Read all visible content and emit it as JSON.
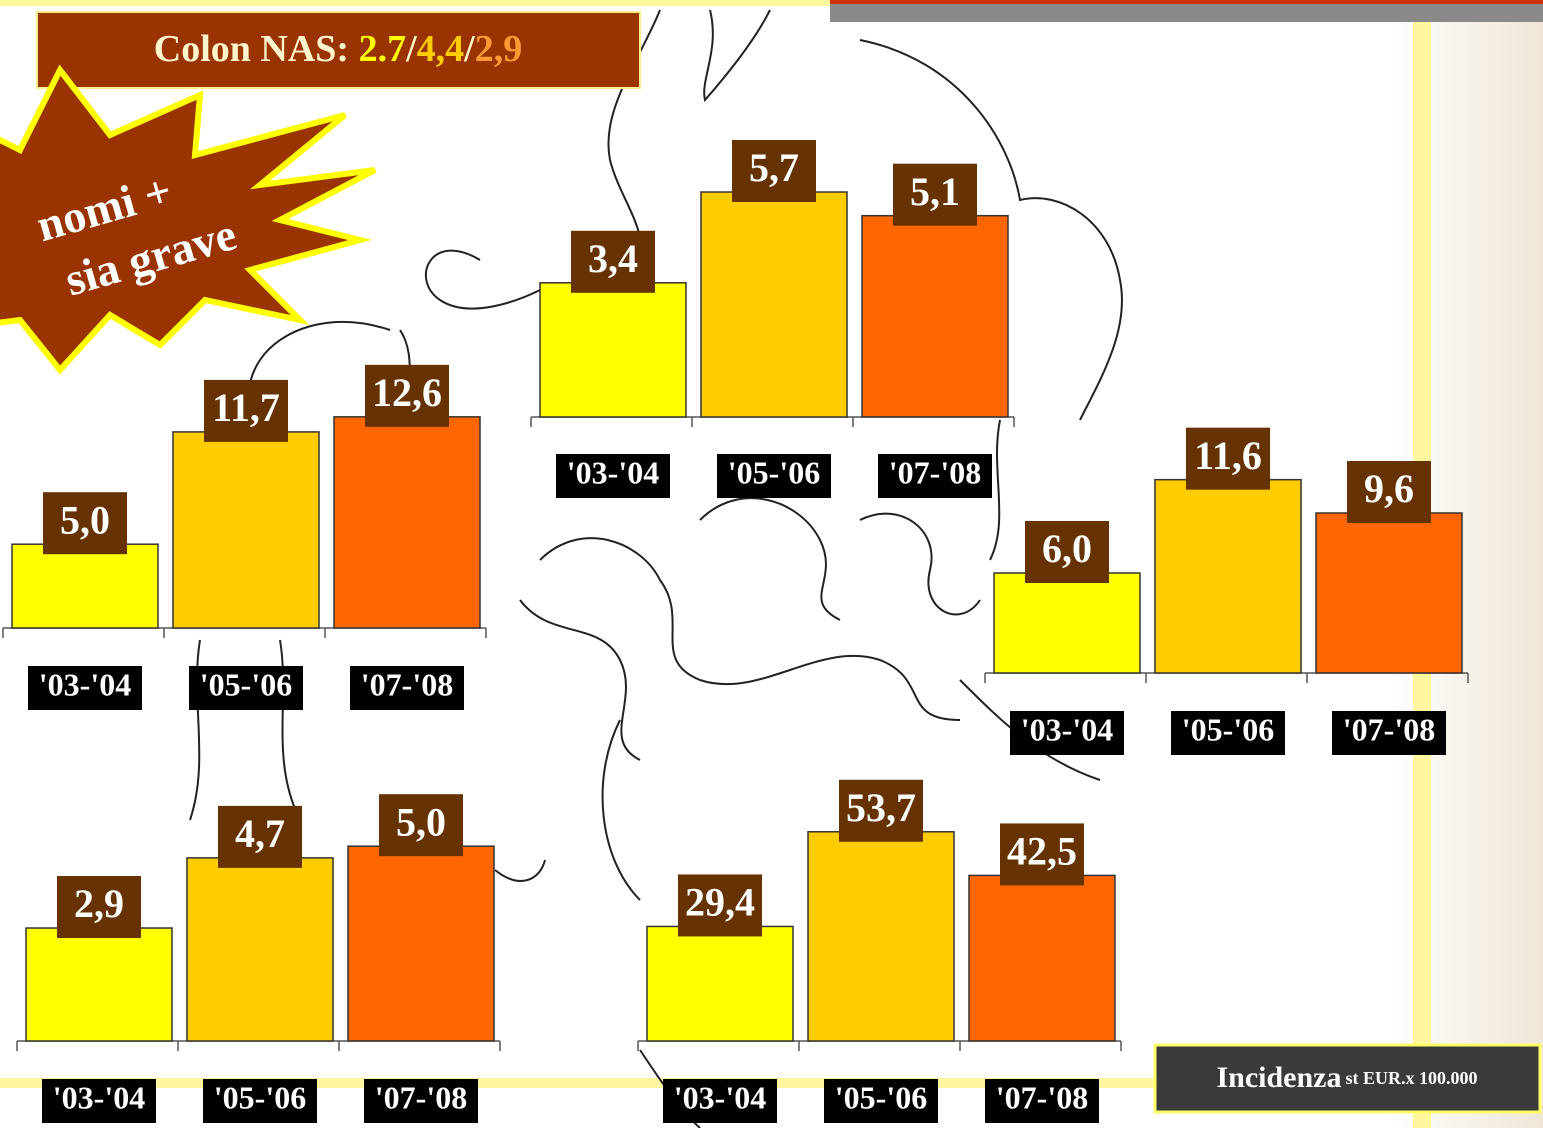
{
  "header": {
    "label": "Colon NAS:",
    "separator": "/",
    "parts": [
      "2.7",
      "4,4",
      "2,9"
    ],
    "colors": [
      "#ffff00",
      "#ffcc00",
      "#ff9933"
    ]
  },
  "burst": {
    "lines": [
      "nomi +",
      "sia grave"
    ]
  },
  "footer": {
    "label": "Incidenza",
    "unit": "st EUR.x 100.000"
  },
  "chart_data": [
    {
      "type": "bar",
      "categories": [
        "'03-'04",
        "'05-'06",
        "'07-'08"
      ],
      "values": [
        5.0,
        11.7,
        12.6
      ],
      "value_labels": [
        "5,0",
        "11,7",
        "12,6"
      ],
      "colors": [
        "#ffff00",
        "#ffcc00",
        "#ff6600"
      ],
      "ylim": [
        0,
        17.9
      ]
    },
    {
      "type": "bar",
      "categories": [
        "'03-'04",
        "'05-'06",
        "'07-'08"
      ],
      "values": [
        3.4,
        5.7,
        5.1
      ],
      "value_labels": [
        "3,4",
        "5,7",
        "5,1"
      ],
      "colors": [
        "#ffff00",
        "#ffcc00",
        "#ff6600"
      ],
      "ylim": [
        0,
        7.6
      ]
    },
    {
      "type": "bar",
      "categories": [
        "'03-'04",
        "'05-'06",
        "'07-'08"
      ],
      "values": [
        6.0,
        11.6,
        9.6
      ],
      "value_labels": [
        "6,0",
        "11,6",
        "9,6"
      ],
      "colors": [
        "#ffff00",
        "#ffcc00",
        "#ff6600"
      ],
      "ylim": [
        0,
        18
      ]
    },
    {
      "type": "bar",
      "categories": [
        "'03-'04",
        "'05-'06",
        "'07-'08"
      ],
      "values": [
        2.9,
        4.7,
        5.0
      ],
      "value_labels": [
        "2,9",
        "4,7",
        "5,0"
      ],
      "colors": [
        "#ffff00",
        "#ffcc00",
        "#ff6600"
      ],
      "ylim": [
        0,
        7.7
      ]
    },
    {
      "type": "bar",
      "categories": [
        "'03-'04",
        "'05-'06",
        "'07-'08"
      ],
      "values": [
        29.4,
        53.7,
        42.5
      ],
      "value_labels": [
        "29,4",
        "53,7",
        "42,5"
      ],
      "colors": [
        "#ffff00",
        "#ffcc00",
        "#ff6600"
      ],
      "ylim": [
        0,
        77
      ]
    }
  ]
}
